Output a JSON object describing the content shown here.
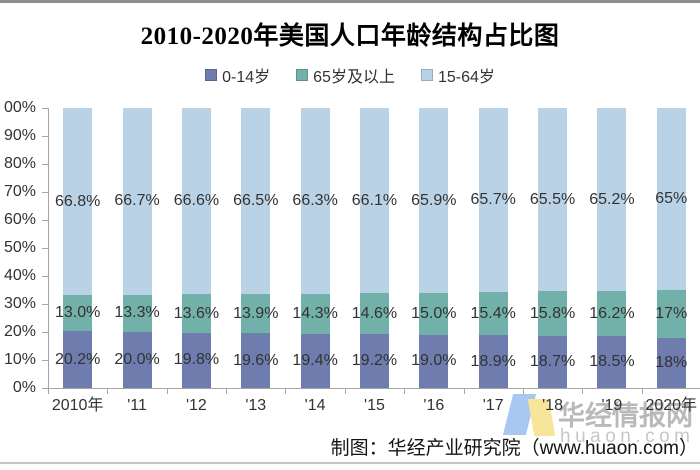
{
  "chart_data": {
    "type": "bar",
    "stacked": true,
    "title": "2010-2020年美国人口年龄结构占比图",
    "categories": [
      "2010年",
      "'11",
      "'12",
      "'13",
      "'14",
      "'15",
      "'16",
      "'17",
      "'18",
      "'19",
      "2020年"
    ],
    "series": [
      {
        "name": "0-14岁",
        "color": "#6e7cae",
        "values": [
          20.2,
          20.0,
          19.8,
          19.6,
          19.4,
          19.2,
          19.0,
          18.9,
          18.7,
          18.5,
          18.0
        ],
        "labels": [
          "20.2%",
          "20.0%",
          "19.8%",
          "19.6%",
          "19.4%",
          "19.2%",
          "19.0%",
          "18.9%",
          "18.7%",
          "18.5%",
          "18%"
        ]
      },
      {
        "name": "65岁及以上",
        "color": "#72b0aa",
        "values": [
          13.0,
          13.3,
          13.6,
          13.9,
          14.3,
          14.6,
          15.0,
          15.4,
          15.8,
          16.2,
          17.0
        ],
        "labels": [
          "13.0%",
          "13.3%",
          "13.6%",
          "13.9%",
          "14.3%",
          "14.6%",
          "15.0%",
          "15.4%",
          "15.8%",
          "16.2%",
          "17%"
        ]
      },
      {
        "name": "15-64岁",
        "color": "#b9d2e6",
        "values": [
          66.8,
          66.7,
          66.6,
          66.5,
          66.3,
          66.1,
          65.9,
          65.7,
          65.5,
          65.2,
          65.0
        ],
        "labels": [
          "66.8%",
          "66.7%",
          "66.6%",
          "66.5%",
          "66.3%",
          "66.1%",
          "65.9%",
          "65.7%",
          "65.5%",
          "65.2%",
          "65%"
        ]
      }
    ],
    "y_ticks": [
      "00%",
      "90%",
      "80%",
      "70%",
      "60%",
      "50%",
      "40%",
      "30%",
      "20%",
      "10%",
      "0%"
    ],
    "ylim": [
      0,
      100
    ],
    "grid": false,
    "legend_position": "top",
    "axis_color": "#a6a6a6"
  },
  "footer": {
    "credit": "制图：华经产业研究院（www.huaon.com）"
  },
  "watermark": {
    "brand": "华经情报网",
    "domain": "huaon.com",
    "logo": "huaon-logo-icon"
  }
}
